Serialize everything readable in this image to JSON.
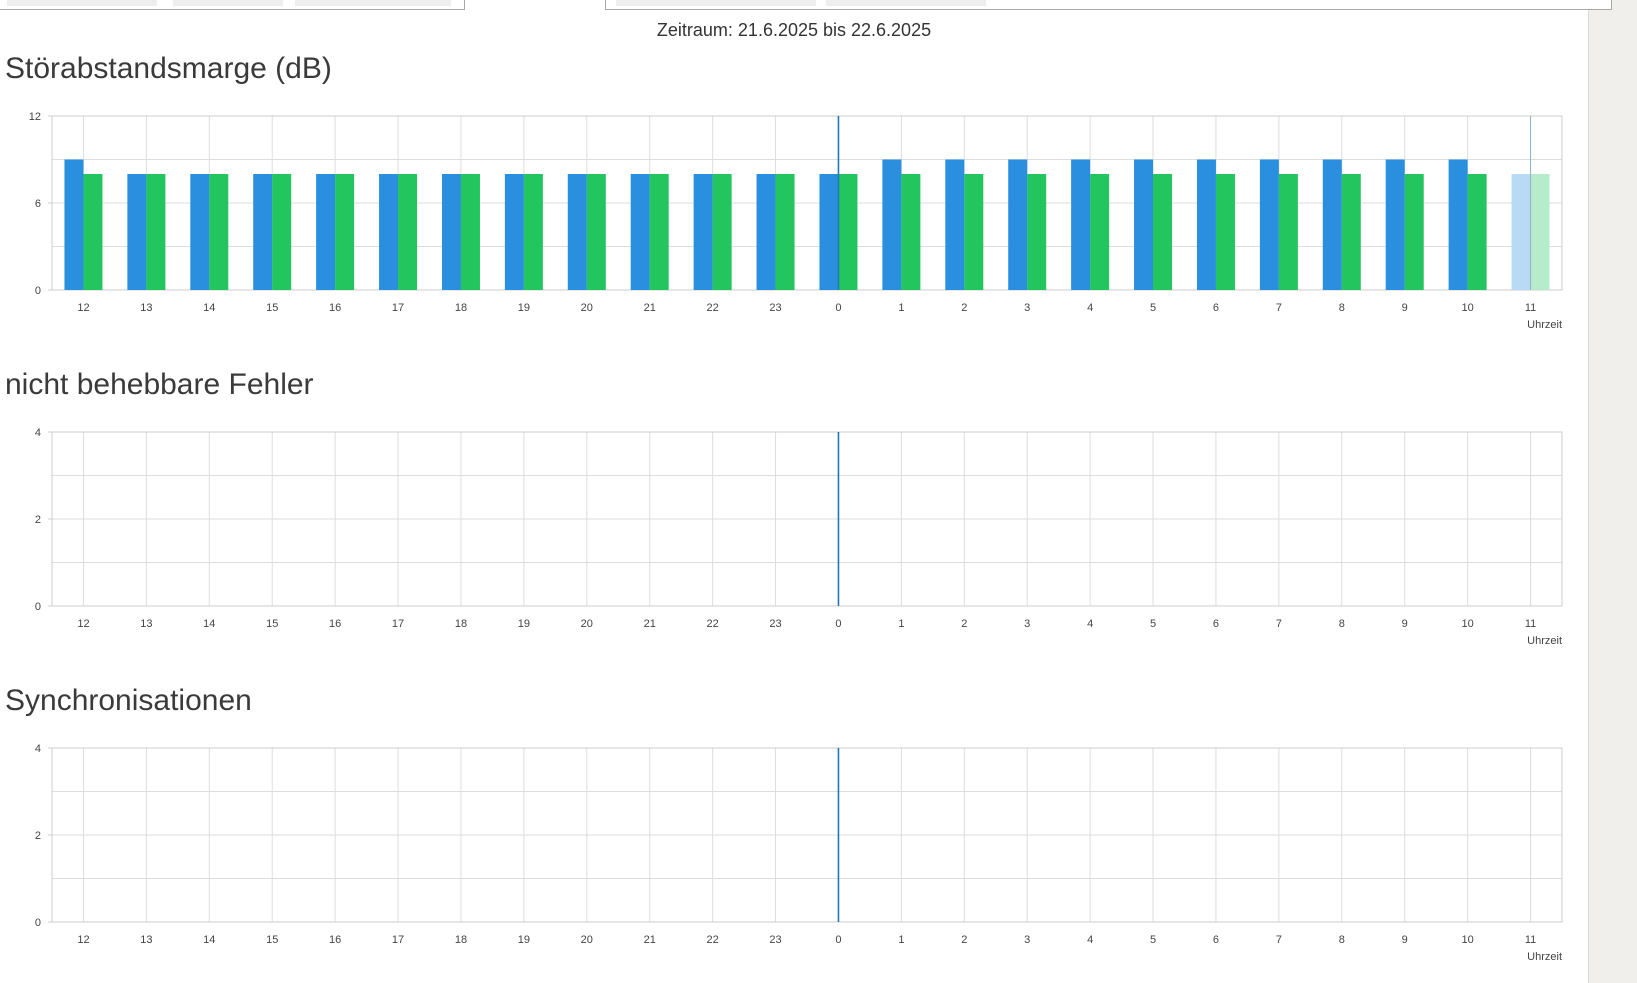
{
  "header": {
    "period_label": "Zeitraum: 21.6.2025 bis 22.6.2025"
  },
  "colors": {
    "series_blue": "#2b8fe0",
    "series_green": "#22c55e",
    "series_blue_partial": "#b9daf3",
    "series_green_partial": "#b6ebcb",
    "grid": "#dddddd",
    "axis": "#cccccc",
    "midnight_marker": "#1f78b4"
  },
  "chart_data": [
    {
      "type": "bar",
      "title": "Störabstandsmarge (dB)",
      "xlabel": "Uhrzeit",
      "ylabel": "",
      "ylim": [
        0,
        12
      ],
      "yticks": [
        "0",
        "6",
        "12"
      ],
      "grid": true,
      "categories": [
        "12",
        "13",
        "14",
        "15",
        "16",
        "17",
        "18",
        "19",
        "20",
        "21",
        "22",
        "23",
        "0",
        "1",
        "2",
        "3",
        "4",
        "5",
        "6",
        "7",
        "8",
        "9",
        "10",
        "11"
      ],
      "midnight_category": "0",
      "partial_category": "11",
      "series": [
        {
          "color": "#2b8fe0",
          "values": [
            9,
            8,
            8,
            8,
            8,
            8,
            8,
            8,
            8,
            8,
            8,
            8,
            8,
            9,
            9,
            9,
            9,
            9,
            9,
            9,
            9,
            9,
            9,
            8
          ]
        },
        {
          "color": "#22c55e",
          "values": [
            8,
            8,
            8,
            8,
            8,
            8,
            8,
            8,
            8,
            8,
            8,
            8,
            8,
            8,
            8,
            8,
            8,
            8,
            8,
            8,
            8,
            8,
            8,
            8
          ]
        }
      ]
    },
    {
      "type": "bar",
      "title": "nicht behebbare Fehler",
      "xlabel": "Uhrzeit",
      "ylabel": "",
      "ylim": [
        0,
        4
      ],
      "yticks": [
        "0",
        "2",
        "4"
      ],
      "grid": true,
      "categories": [
        "12",
        "13",
        "14",
        "15",
        "16",
        "17",
        "18",
        "19",
        "20",
        "21",
        "22",
        "23",
        "0",
        "1",
        "2",
        "3",
        "4",
        "5",
        "6",
        "7",
        "8",
        "9",
        "10",
        "11"
      ],
      "midnight_category": "0",
      "series": []
    },
    {
      "type": "bar",
      "title": "Synchronisationen",
      "xlabel": "Uhrzeit",
      "ylabel": "",
      "ylim": [
        0,
        4
      ],
      "yticks": [
        "0",
        "2",
        "4"
      ],
      "grid": true,
      "categories": [
        "12",
        "13",
        "14",
        "15",
        "16",
        "17",
        "18",
        "19",
        "20",
        "21",
        "22",
        "23",
        "0",
        "1",
        "2",
        "3",
        "4",
        "5",
        "6",
        "7",
        "8",
        "9",
        "10",
        "11"
      ],
      "midnight_category": "0",
      "series": []
    }
  ]
}
